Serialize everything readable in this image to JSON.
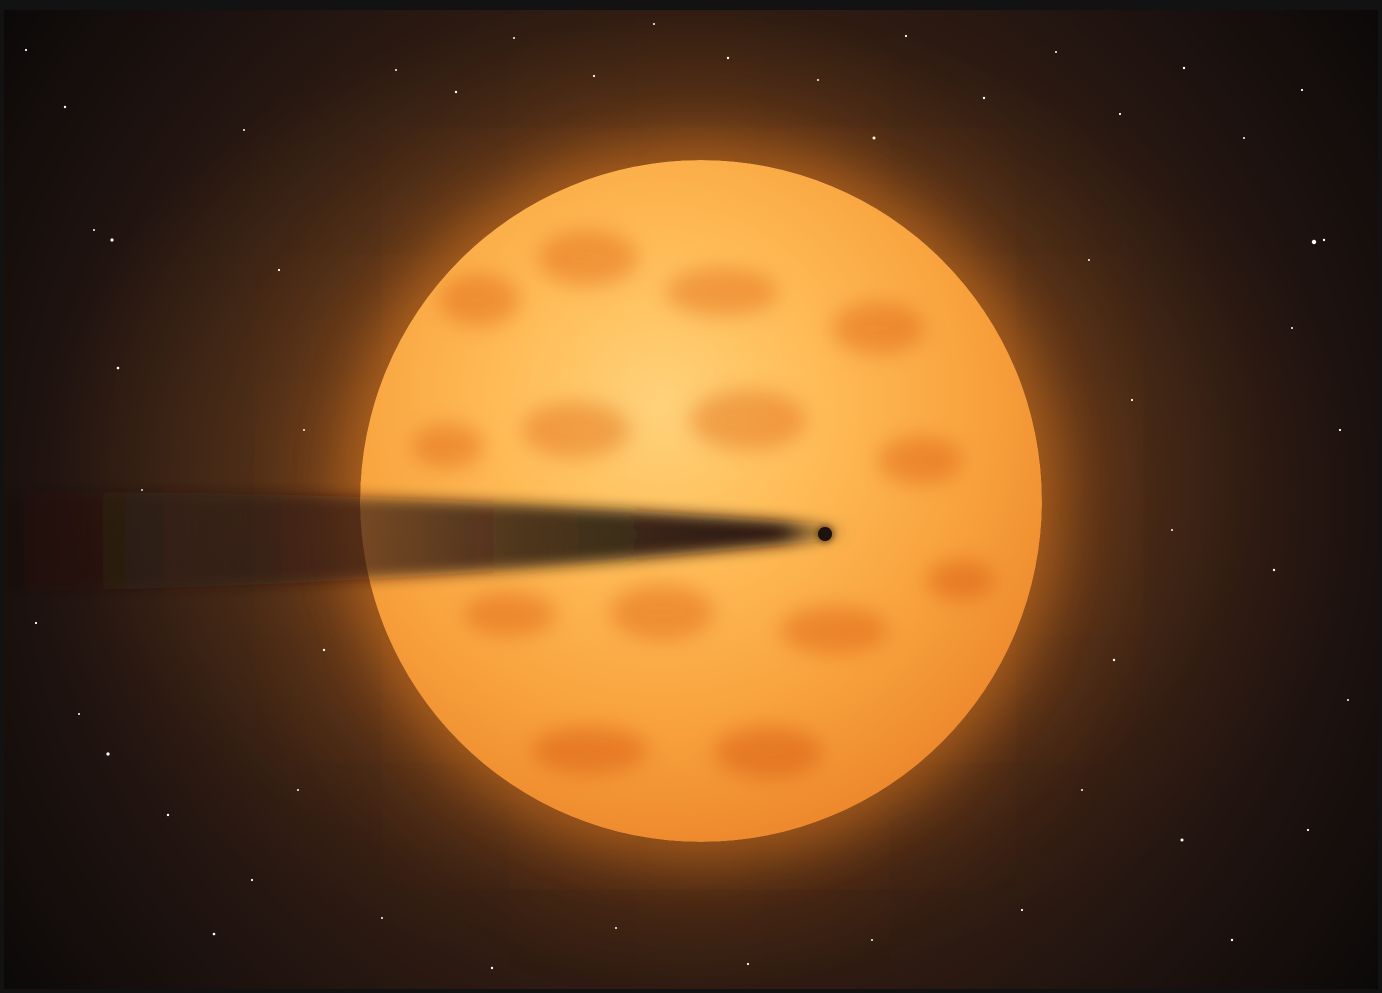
{
  "scene": {
    "description_visible_elements": [
      "starfield",
      "orange-star",
      "dark-tail",
      "planet"
    ],
    "colors": {
      "background": "#0b0908",
      "glow": "#d36a1c",
      "star_core": "#ffd27a",
      "star_edge": "#d56a23",
      "tail": "#201411",
      "planet": "#1e120e"
    }
  }
}
